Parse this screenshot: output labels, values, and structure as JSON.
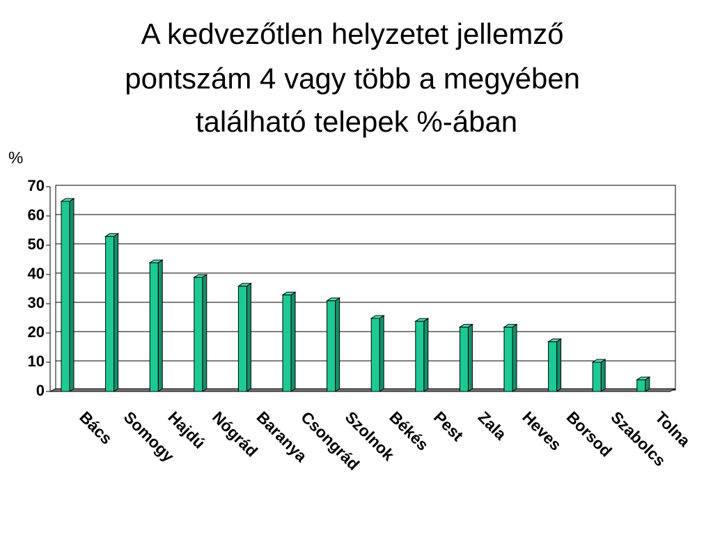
{
  "chart_data": {
    "type": "bar",
    "title": [
      "A kedvezőtlen helyzetet jellemző",
      "pontszám 4 vagy több a megyében",
      "található telepek %-ában"
    ],
    "y_label": "%",
    "categories": [
      "Bács",
      "Somogy",
      "Hajdú",
      "Nógrád",
      "Baranya",
      "Csongrád",
      "Szolnok",
      "Békés",
      "Pest",
      "Zala",
      "Heves",
      "Borsod",
      "Szabolcs",
      "Tolna"
    ],
    "values": [
      65,
      53,
      44,
      39,
      36,
      33,
      31,
      25,
      24,
      22,
      22,
      17,
      10,
      4
    ],
    "color": "#1dc994",
    "ylim": [
      0,
      70
    ],
    "yticks": [
      0,
      10,
      20,
      30,
      40,
      50,
      60,
      70
    ],
    "grid": true
  }
}
